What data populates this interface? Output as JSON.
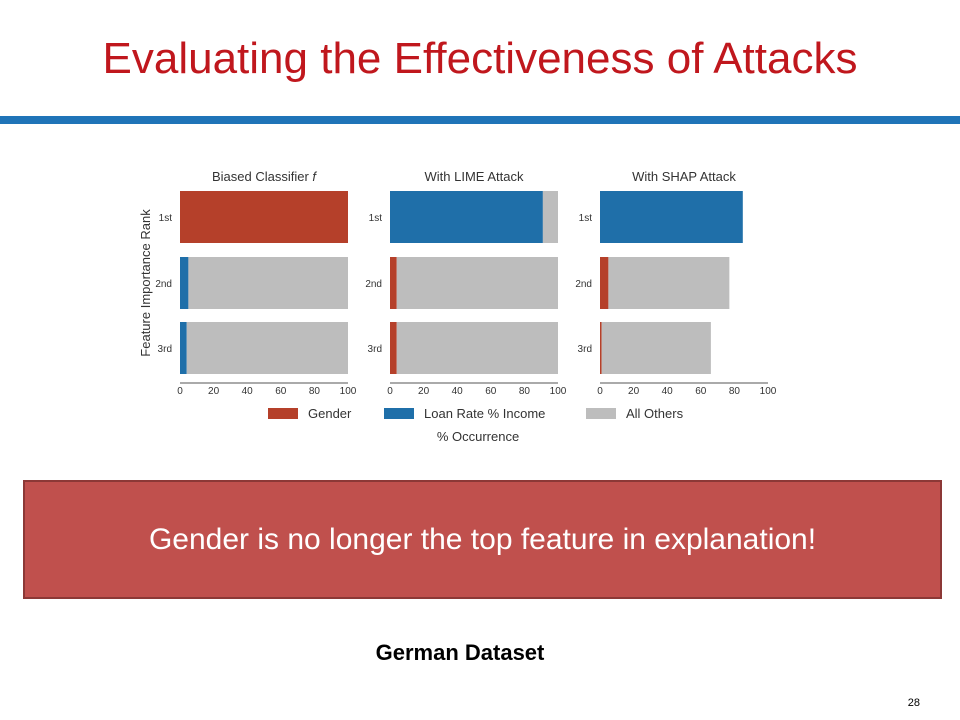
{
  "slide": {
    "title": "Evaluating the Effectiveness of Attacks",
    "callout": "Gender is no longer the top feature in explanation!",
    "caption": "German Dataset",
    "page_number": "28"
  },
  "colors": {
    "title": "#c0171d",
    "rule": "#1f74b8",
    "callout_bg": "#c0504d",
    "gender": "#b5402a",
    "loan": "#1f6fa9",
    "others": "#bdbdbd"
  },
  "chart_data": {
    "type": "bar",
    "orientation": "horizontal-stacked",
    "xlabel": "% Occurrence",
    "ylabel": "Feature Importance Rank",
    "xlim": [
      0,
      100
    ],
    "xticks": [
      0,
      20,
      40,
      60,
      80,
      100
    ],
    "categories": [
      "1st",
      "2nd",
      "3rd"
    ],
    "legend": [
      {
        "key": "gender",
        "label": "Gender"
      },
      {
        "key": "loan",
        "label": "Loan Rate % Income"
      },
      {
        "key": "others",
        "label": "All Others"
      }
    ],
    "panels": [
      {
        "title": "Biased Classifier ",
        "title_italic": "f",
        "series": [
          {
            "key": "gender",
            "name": "Gender",
            "values": [
              100,
              0,
              0
            ]
          },
          {
            "key": "loan",
            "name": "Loan Rate % Income",
            "values": [
              0,
              5,
              4
            ]
          },
          {
            "key": "others",
            "name": "All Others",
            "values": [
              0,
              95,
              96
            ]
          }
        ]
      },
      {
        "title": "With LIME Attack",
        "title_italic": "",
        "series": [
          {
            "key": "gender",
            "name": "Gender",
            "values": [
              0,
              4,
              4
            ]
          },
          {
            "key": "loan",
            "name": "Loan Rate % Income",
            "values": [
              91,
              0,
              0
            ]
          },
          {
            "key": "others",
            "name": "All Others",
            "values": [
              9,
              96,
              96
            ]
          }
        ]
      },
      {
        "title": "With SHAP Attack",
        "title_italic": "",
        "series": [
          {
            "key": "gender",
            "name": "Gender",
            "values": [
              0,
              5,
              1
            ]
          },
          {
            "key": "loan",
            "name": "Loan Rate % Income",
            "values": [
              85,
              0,
              0
            ]
          },
          {
            "key": "others",
            "name": "All Others",
            "values": [
              0,
              72,
              65
            ]
          }
        ]
      }
    ]
  }
}
